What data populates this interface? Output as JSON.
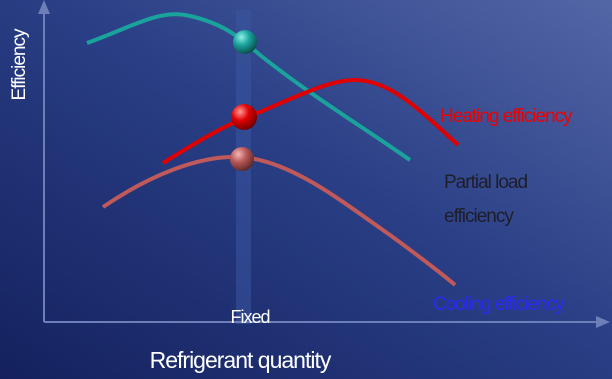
{
  "y_axis_label": "Efficiency",
  "x_axis_label": "Refrigerant quantity",
  "marker_label": "Fixed",
  "curve_labels": {
    "heating": "Heating efficiency",
    "partial_load": [
      "Partial load",
      "efficiency"
    ],
    "cooling": "Cooling efficiency"
  }
}
